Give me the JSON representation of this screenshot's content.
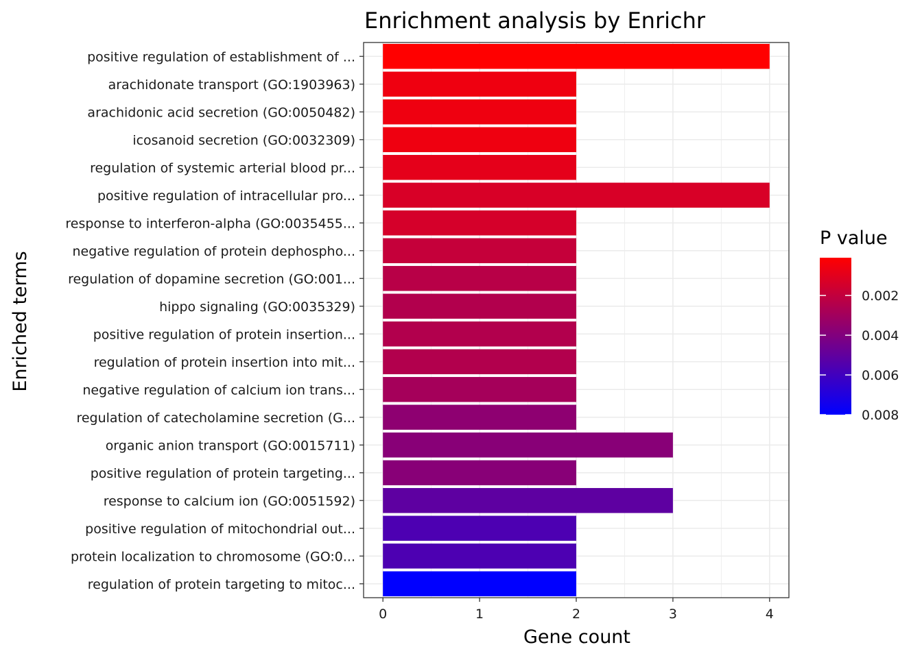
{
  "chart_data": {
    "type": "bar",
    "orientation": "horizontal",
    "title": "Enrichment analysis by Enrichr",
    "xlabel": "Gene count",
    "ylabel": "Enriched terms",
    "xlim": [
      -0.2,
      4.2
    ],
    "xticks": [
      "0",
      "1",
      "2",
      "3",
      "4"
    ],
    "grid": true,
    "categories": [
      "positive regulation of establishment of ...",
      "arachidonate transport (GO:1903963)",
      "arachidonic acid secretion (GO:0050482)",
      "icosanoid secretion (GO:0032309)",
      "regulation of systemic arterial blood pr...",
      "positive regulation of intracellular pro...",
      "response to interferon-alpha (GO:0035455...",
      "negative regulation of protein dephospho...",
      "regulation of dopamine secretion (GO:001...",
      "hippo signaling (GO:0035329)",
      "positive regulation of protein insertion...",
      "regulation of protein insertion into mit...",
      "negative regulation of calcium ion trans...",
      "regulation of catecholamine secretion (G...",
      "organic anion transport (GO:0015711)",
      "positive regulation of protein targeting...",
      "response to calcium ion (GO:0051592)",
      "positive regulation of mitochondrial out...",
      "protein localization to chromosome (GO:0...",
      "regulation of protein targeting to mitoc..."
    ],
    "values": [
      4,
      2,
      2,
      2,
      2,
      4,
      2,
      2,
      2,
      2,
      2,
      2,
      2,
      2,
      3,
      2,
      3,
      2,
      2,
      2
    ],
    "p_values": [
      0.0001,
      0.0006,
      0.0006,
      0.0006,
      0.0009,
      0.0013,
      0.0014,
      0.0019,
      0.0023,
      0.0025,
      0.0025,
      0.0025,
      0.0029,
      0.0036,
      0.0038,
      0.0038,
      0.0051,
      0.0056,
      0.0056,
      0.008
    ],
    "color_scale": {
      "title": "P value",
      "low_color": "#ff0000",
      "high_color": "#0000ff",
      "range": [
        0.0001,
        0.008
      ],
      "ticks": [
        "0.002",
        "0.004",
        "0.006",
        "0.008"
      ]
    },
    "legend_position": "right"
  }
}
